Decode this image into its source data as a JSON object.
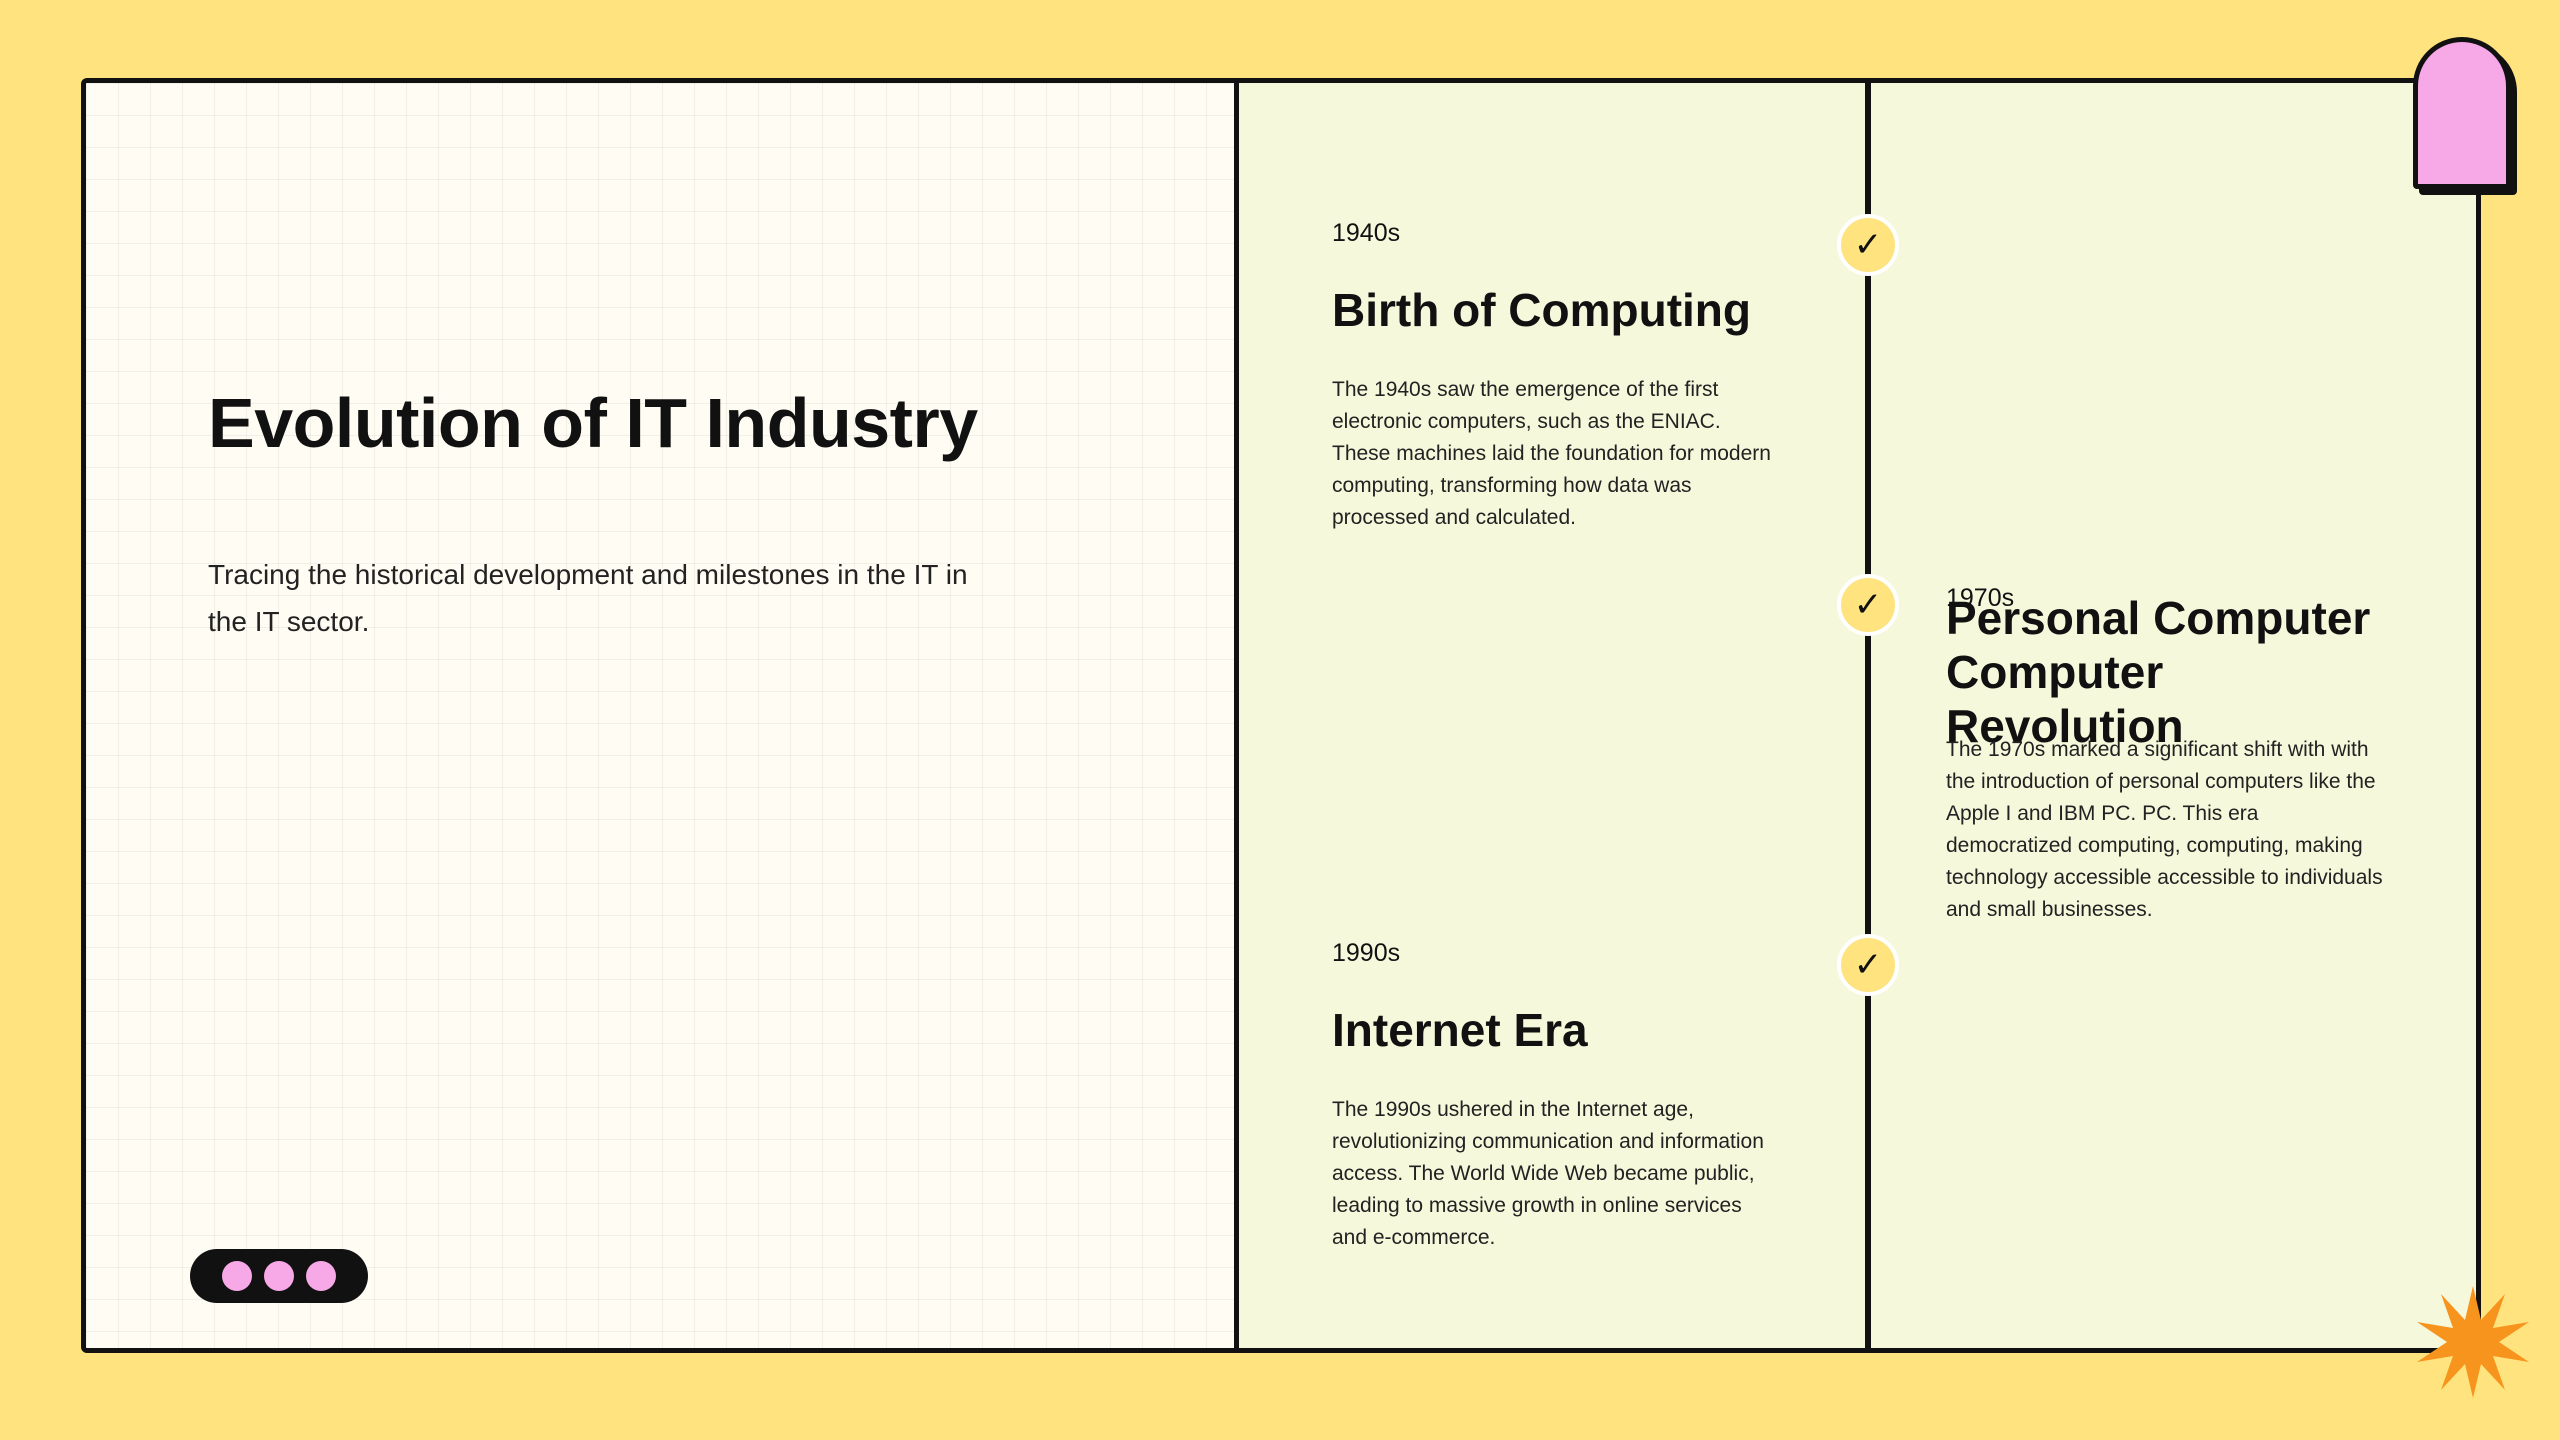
{
  "left": {
    "title": "Evolution of IT Industry",
    "subtitle": "Tracing the historical development and milestones in the IT in the IT sector."
  },
  "timeline": {
    "items": [
      {
        "year": "1940s",
        "title": "Birth of Computing",
        "description": "The 1940s saw the emergence of the first electronic computers, such as the ENIAC. These machines laid the foundation for modern computing, transforming how data was processed and calculated."
      },
      {
        "year": "1970s",
        "title": "Personal Computer Computer Revolution",
        "description": "The 1970s marked a significant shift with with the introduction of personal computers like the Apple I and IBM PC. PC. This era democratized computing, computing, making technology accessible accessible to individuals and small businesses."
      },
      {
        "year": "1990s",
        "title": "Internet Era",
        "description": "The 1990s ushered in the Internet age, revolutionizing communication and information access. The World Wide Web became public, leading to massive growth in online services and e-commerce."
      }
    ],
    "check_glyph": "✓"
  },
  "decor": {
    "icons": [
      "checkmark-icon",
      "pagination-dots",
      "pink-tab",
      "starburst-icon"
    ],
    "colors": {
      "background": "#FFE37E",
      "panel": "#FFFDF3",
      "timeline_panel": "#F6F8DC",
      "accent_pink": "#F7A8E6",
      "accent_orange": "#F7941D",
      "ink": "#111111"
    }
  }
}
